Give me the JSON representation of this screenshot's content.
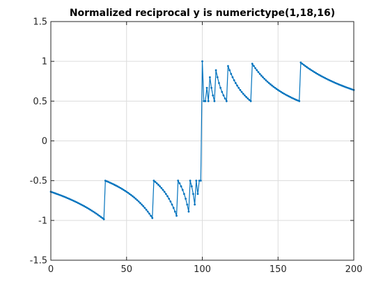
{
  "chart_data": {
    "type": "line",
    "title": "Normalized reciprocal y is numerictype(1,18,16)",
    "xlabel": "",
    "ylabel": "",
    "xlim": [
      0,
      200
    ],
    "ylim": [
      -1.5,
      1.5
    ],
    "xticks": [
      0,
      50,
      100,
      150,
      200
    ],
    "yticks": [
      -1.5,
      -1,
      -0.5,
      0,
      0.5,
      1,
      1.5
    ],
    "xtick_labels": [
      "0",
      "50",
      "100",
      "150",
      "200"
    ],
    "ytick_labels": [
      "-1.5",
      "-1",
      "-0.5",
      "0",
      "0.5",
      "1",
      "1.5"
    ],
    "grid": true,
    "color": "#0072BD",
    "marker": "dot",
    "series": [
      {
        "segments": [
          {
            "x_start": 0,
            "x_end": 100.5,
            "pieces": [
              {
                "a": -100,
                "b": -64,
                "branch": "neg"
              },
              {
                "a": -64,
                "b": -32,
                "branch": "neg"
              },
              {
                "a": -32,
                "b": -16,
                "branch": "neg"
              },
              {
                "a": -16,
                "b": -8,
                "branch": "neg"
              },
              {
                "a": -8,
                "b": -4,
                "branch": "neg"
              },
              {
                "a": -4,
                "b": -2,
                "branch": "neg"
              },
              {
                "a": -2,
                "b": -1,
                "branch": "neg"
              },
              {
                "a": -1,
                "b": -0.5,
                "branch": "neg"
              }
            ]
          },
          {
            "x_start": 100.5,
            "x_end": 200,
            "pieces": [
              {
                "a": 0.5,
                "b": 1,
                "branch": "pos"
              },
              {
                "a": 1,
                "b": 2,
                "branch": "pos"
              },
              {
                "a": 2,
                "b": 4,
                "branch": "pos"
              },
              {
                "a": 4,
                "b": 8,
                "branch": "pos"
              },
              {
                "a": 8,
                "b": 16,
                "branch": "pos"
              },
              {
                "a": 16,
                "b": 32,
                "branch": "pos"
              },
              {
                "a": 32,
                "b": 64,
                "branch": "pos"
              },
              {
                "a": 64,
                "b": 100,
                "branch": "pos"
              }
            ]
          }
        ]
      }
    ]
  }
}
